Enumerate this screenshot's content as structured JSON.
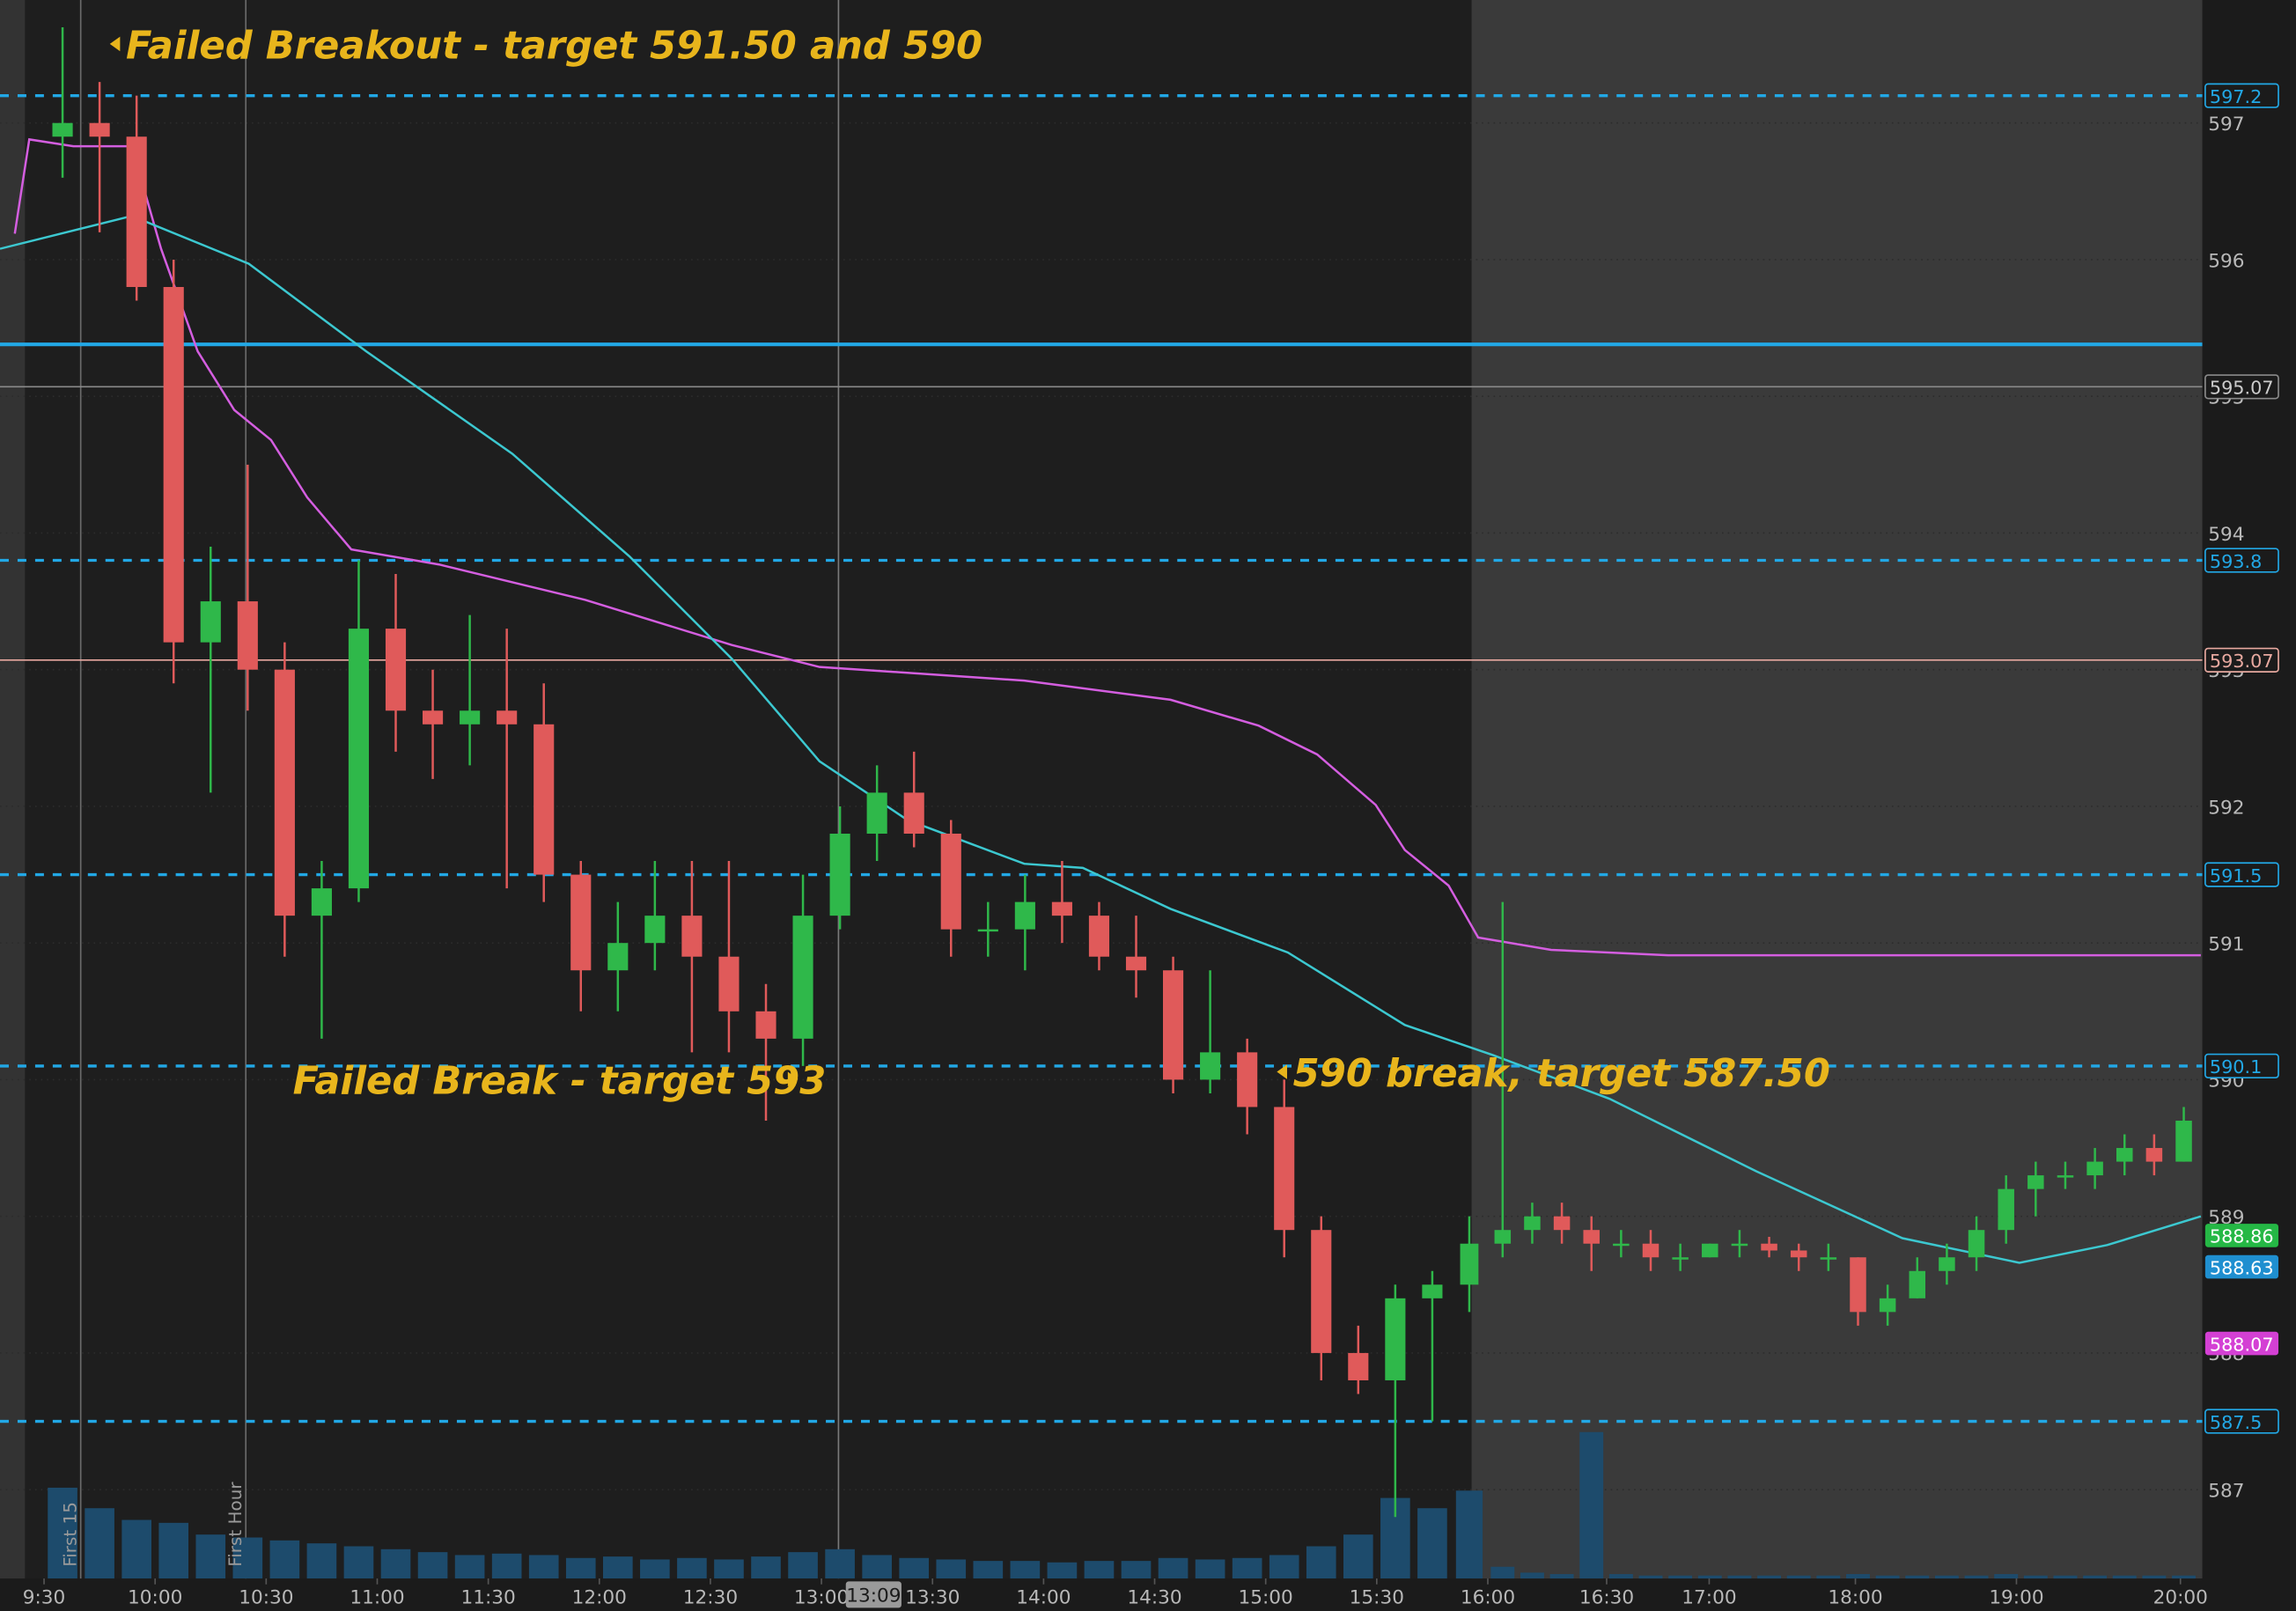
{
  "chart_data": {
    "type": "candlestick",
    "x": [
      5,
      15,
      25,
      35,
      45,
      55,
      65,
      75,
      85,
      95,
      105,
      115,
      125,
      135,
      145,
      155,
      165,
      175,
      185,
      195,
      205,
      215,
      225,
      235,
      245,
      255,
      265,
      275,
      285,
      295,
      305,
      315,
      325,
      335,
      345,
      355,
      365,
      375,
      385,
      394,
      402,
      410,
      418,
      426,
      434,
      442,
      450,
      458,
      466,
      474,
      482,
      490,
      498,
      506,
      514,
      522,
      530,
      538,
      546,
      554,
      562,
      570,
      578
    ],
    "open": [
      596.9,
      597.0,
      596.9,
      595.8,
      593.2,
      593.5,
      593.0,
      591.2,
      591.4,
      593.3,
      592.7,
      592.6,
      592.7,
      592.6,
      591.5,
      590.8,
      591.0,
      591.2,
      590.9,
      590.5,
      590.3,
      591.2,
      591.8,
      592.1,
      591.8,
      591.1,
      591.1,
      591.3,
      591.2,
      590.9,
      590.8,
      590.0,
      590.2,
      589.8,
      588.9,
      588.0,
      587.8,
      588.4,
      588.5,
      588.8,
      588.9,
      589.0,
      588.9,
      588.8,
      588.8,
      588.7,
      588.7,
      588.8,
      588.8,
      588.75,
      588.7,
      588.7,
      588.3,
      588.4,
      588.6,
      588.7,
      588.9,
      589.2,
      589.3,
      589.3,
      589.4,
      589.5,
      589.4
    ],
    "high": [
      597.7,
      597.3,
      597.2,
      596.0,
      593.9,
      594.5,
      593.2,
      591.6,
      593.8,
      593.7,
      593.0,
      593.4,
      593.3,
      592.9,
      591.6,
      591.3,
      591.6,
      591.6,
      591.6,
      590.7,
      591.5,
      592.0,
      592.3,
      592.4,
      591.9,
      591.3,
      591.5,
      591.6,
      591.3,
      591.2,
      590.9,
      590.8,
      590.3,
      590.0,
      589.0,
      588.2,
      588.5,
      588.6,
      589.0,
      591.3,
      589.1,
      589.1,
      589.0,
      588.9,
      588.9,
      588.8,
      588.8,
      588.9,
      588.85,
      588.8,
      588.8,
      588.7,
      588.5,
      588.7,
      588.8,
      589.0,
      589.3,
      589.4,
      589.4,
      589.5,
      589.6,
      589.6,
      589.8
    ],
    "low": [
      596.6,
      596.2,
      595.7,
      592.9,
      592.1,
      592.7,
      590.9,
      590.3,
      591.3,
      592.4,
      592.2,
      592.3,
      591.4,
      591.3,
      590.5,
      590.5,
      590.8,
      590.2,
      590.2,
      589.7,
      590.1,
      591.1,
      591.6,
      591.7,
      590.9,
      590.9,
      590.8,
      591.0,
      590.8,
      590.6,
      589.9,
      589.9,
      589.6,
      588.7,
      587.8,
      587.7,
      586.8,
      587.5,
      588.3,
      588.7,
      588.8,
      588.8,
      588.6,
      588.7,
      588.6,
      588.6,
      588.7,
      588.7,
      588.7,
      588.6,
      588.6,
      588.2,
      588.2,
      588.4,
      588.5,
      588.6,
      588.8,
      589.0,
      589.2,
      589.2,
      589.3,
      589.3,
      589.4
    ],
    "close": [
      597.0,
      596.9,
      595.8,
      593.2,
      593.5,
      593.0,
      591.2,
      591.4,
      593.3,
      592.7,
      592.6,
      592.7,
      592.6,
      591.5,
      590.8,
      591.0,
      591.2,
      590.9,
      590.5,
      590.3,
      591.2,
      591.8,
      592.1,
      591.8,
      591.1,
      591.1,
      591.3,
      591.2,
      590.9,
      590.8,
      590.0,
      590.2,
      589.8,
      588.9,
      588.0,
      587.8,
      588.4,
      588.5,
      588.8,
      588.9,
      589.0,
      588.9,
      588.8,
      588.8,
      588.7,
      588.7,
      588.8,
      588.8,
      588.75,
      588.7,
      588.7,
      588.3,
      588.4,
      588.6,
      588.7,
      588.9,
      589.2,
      589.3,
      589.3,
      589.4,
      589.5,
      589.4,
      589.7
    ],
    "volume": [
      62,
      48,
      40,
      38,
      30,
      28,
      26,
      24,
      22,
      20,
      18,
      16,
      17,
      16,
      14,
      15,
      13,
      14,
      13,
      15,
      18,
      20,
      16,
      14,
      13,
      12,
      12,
      11,
      12,
      12,
      14,
      13,
      14,
      16,
      22,
      30,
      55,
      48,
      60,
      8,
      4,
      3,
      100,
      3,
      2,
      2,
      2,
      2,
      2,
      2,
      2,
      3,
      2,
      2,
      2,
      2,
      3,
      2,
      2,
      2,
      2,
      2,
      2
    ],
    "up_color": "#2fb84a",
    "down_color": "#e05a5a",
    "volume_color": "#1d4b6c",
    "indicators": [
      {
        "color": "#d45ee0",
        "x": [
          -7.9,
          -4,
          7.9,
          23.7,
          31.6,
          41.5,
          51.4,
          61.3,
          71.1,
          83,
          106.7,
          146.2,
          185.8,
          209.5,
          264.8,
          304.3,
          328.1,
          343.9,
          359.7,
          367.6,
          379.4,
          387.4,
          407.1,
          438.7,
          513.8,
          582.6
        ],
        "values": [
          596.19,
          596.88,
          596.83,
          596.83,
          596.08,
          595.33,
          594.9,
          594.68,
          594.26,
          593.88,
          593.77,
          593.51,
          593.18,
          593.02,
          592.92,
          592.78,
          592.59,
          592.38,
          592.01,
          591.68,
          591.42,
          591.04,
          590.95,
          590.91,
          590.91,
          590.91
        ]
      },
      {
        "color": "#3cc8d0",
        "x": [
          -11.9,
          23.7,
          55.3,
          87.0,
          126.5,
          158.1,
          185.8,
          209.5,
          233.2,
          264.8,
          280.6,
          304.3,
          336.0,
          367.6,
          391.3,
          422.9,
          462.5,
          502.0,
          533.6,
          557.3,
          582.6
        ],
        "values": [
          596.08,
          596.32,
          595.97,
          595.33,
          594.58,
          593.83,
          593.08,
          592.33,
          591.9,
          591.58,
          591.55,
          591.25,
          590.93,
          590.4,
          590.18,
          589.86,
          589.33,
          588.84,
          588.66,
          588.79,
          589.0
        ]
      }
    ],
    "levels": [
      {
        "value": 597.2,
        "color": "#22a8e6",
        "style": "dashed"
      },
      {
        "value": 593.8,
        "color": "#22a8e6",
        "style": "dashed"
      },
      {
        "value": 591.5,
        "color": "#22a8e6",
        "style": "dashed"
      },
      {
        "value": 590.1,
        "color": "#22a8e6",
        "style": "dashed"
      },
      {
        "value": 587.5,
        "color": "#22a8e6",
        "style": "dashed"
      },
      {
        "value": 595.07,
        "color": "#8a8a8a",
        "style": "solid"
      },
      {
        "value": 593.07,
        "color": "#e8a9a0",
        "style": "solid"
      }
    ],
    "lines": [
      {
        "value": 595.38,
        "color": "#22a8e6"
      }
    ],
    "price_tags": [
      {
        "value": 588.86,
        "color": "#25b845"
      },
      {
        "value": 588.63,
        "color": "#1f8fd0"
      },
      {
        "value": 588.07,
        "color": "#d440d4"
      }
    ],
    "markers": [
      {
        "x": 9.9,
        "label": "First 15"
      },
      {
        "x": 54.5,
        "label": "First Hour"
      }
    ],
    "crosshair": {
      "value": 214.6,
      "label": "13:09"
    },
    "xlim": [
      -11.9,
      583
    ],
    "xticks": [
      {
        "value": 0,
        "label": "9:30"
      },
      {
        "value": 30,
        "label": "10:00"
      },
      {
        "value": 60,
        "label": "10:30"
      },
      {
        "value": 90,
        "label": "11:00"
      },
      {
        "value": 120,
        "label": "11:30"
      },
      {
        "value": 150,
        "label": "12:00"
      },
      {
        "value": 180,
        "label": "12:30"
      },
      {
        "value": 210,
        "label": "13:00"
      },
      {
        "value": 240,
        "label": "13:30"
      },
      {
        "value": 270,
        "label": "14:00"
      },
      {
        "value": 300,
        "label": "14:30"
      },
      {
        "value": 330,
        "label": "15:00"
      },
      {
        "value": 360,
        "label": "15:30"
      },
      {
        "value": 390,
        "label": "16:00"
      },
      {
        "value": 422.1,
        "label": "16:30"
      },
      {
        "value": 449.8,
        "label": "17:00"
      },
      {
        "value": 489.3,
        "label": "18:00"
      },
      {
        "value": 532.8,
        "label": "19:00"
      },
      {
        "value": 577.1,
        "label": "20:00"
      }
    ],
    "ylim": [
      586.35,
      597.9
    ],
    "yticks": [
      587,
      588,
      589,
      590,
      591,
      592,
      593,
      594,
      595,
      596,
      597
    ],
    "grid": true
  },
  "annotations": [
    "Failed Breakout - target 591.50 and 590",
    "Failed Break - target 593",
    "590 break, target 587.50"
  ]
}
